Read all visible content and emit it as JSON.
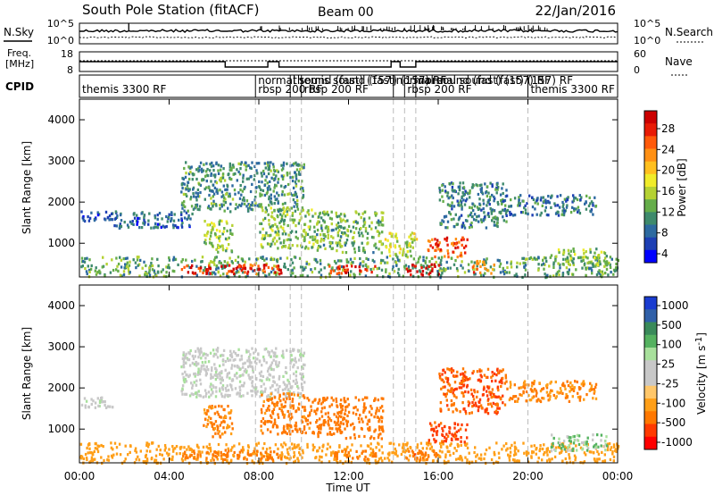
{
  "header": {
    "station": "South Pole Station (fitACF)",
    "beam": "Beam 00",
    "date": "22/Jan/2016"
  },
  "noise_panel": {
    "left_label": "N.Sky",
    "right_label": "N.Search",
    "left_ticks": [
      "10^5",
      "10^0"
    ],
    "right_ticks": [
      "10^5",
      "10^0"
    ]
  },
  "freq_panel": {
    "left_label_1": "Freq.",
    "left_label_2": "[MHz]",
    "right_label": "Nave",
    "left_ticks": [
      "18",
      "8"
    ],
    "right_ticks": [
      "60",
      "0"
    ]
  },
  "cpid": {
    "label": "CPID",
    "segments": [
      {
        "text": "themis 3300 RF",
        "start": 0.0
      },
      {
        "text": "normal sound (fast) (157)",
        "start": 7.85
      },
      {
        "text": "rbsp 200 RF",
        "start": 7.85
      },
      {
        "text": "themis sound (fast) (157) RF",
        "start": 9.4
      },
      {
        "text": "rbsp 200 RF",
        "start": 9.9
      },
      {
        "text": "normal sound (fast) (157) RF",
        "start": 14.0
      },
      {
        "text": "rbsp 200 RF",
        "start": 14.5
      },
      {
        "text": "normal sound (fast) (157) RF",
        "start": 15.0
      },
      {
        "text": "themis 3300 RF",
        "start": 20.0
      }
    ],
    "mode_boundaries": [
      7.85,
      9.4,
      9.9,
      14.0,
      14.5,
      15.0,
      20.0
    ]
  },
  "chart_data": {
    "type": "heatmap",
    "xlabel": "Time UT",
    "ylabel": "Slant Range [km]",
    "x_tick_labels": [
      "00:00",
      "04:00",
      "08:00",
      "12:00",
      "16:00",
      "20:00",
      "00:00"
    ],
    "x_ticks_hours": [
      0,
      4,
      8,
      12,
      16,
      20,
      24
    ],
    "xlim": [
      0,
      24
    ],
    "ylim": [
      180,
      4500
    ],
    "y_ticks": [
      1000,
      2000,
      3000,
      4000
    ],
    "panels": [
      {
        "name": "power",
        "colorbar_label": "Power [dB]",
        "colorbar_ticks": [
          "28",
          "24",
          "20",
          "16",
          "12",
          "8",
          "4"
        ],
        "colorbar_range": [
          0,
          30
        ],
        "colorbar_colors": [
          "#0000ff",
          "#1d3fb4",
          "#2d6aa0",
          "#3e8a6c",
          "#65ad4a",
          "#b5d233",
          "#f0ec2a",
          "#ffc01f",
          "#ff9014",
          "#ff5a0a",
          "#e81b05",
          "#cc0000"
        ],
        "echo_regions": [
          {
            "t0": 0.0,
            "t1": 24.0,
            "r0": 200,
            "r1": 700,
            "v": 10
          },
          {
            "t0": 4.5,
            "t1": 9.0,
            "r0": 280,
            "r1": 520,
            "v": 26
          },
          {
            "t0": 11.0,
            "t1": 13.2,
            "r0": 280,
            "r1": 500,
            "v": 27
          },
          {
            "t0": 14.5,
            "t1": 16.0,
            "r0": 260,
            "r1": 520,
            "v": 29
          },
          {
            "t0": 15.5,
            "t1": 17.3,
            "r0": 700,
            "r1": 1200,
            "v": 24
          },
          {
            "t0": 17.5,
            "t1": 18.5,
            "r0": 300,
            "r1": 600,
            "v": 22
          },
          {
            "t0": 0.0,
            "t1": 1.5,
            "r0": 1550,
            "r1": 1800,
            "v": 5
          },
          {
            "t0": 1.5,
            "t1": 5.0,
            "r0": 1400,
            "r1": 1800,
            "v": 6
          },
          {
            "t0": 4.5,
            "t1": 10.0,
            "r0": 1800,
            "r1": 3000,
            "v": 9
          },
          {
            "t0": 5.5,
            "t1": 6.8,
            "r0": 800,
            "r1": 1600,
            "v": 13
          },
          {
            "t0": 8.0,
            "t1": 10.5,
            "r0": 900,
            "r1": 1900,
            "v": 12
          },
          {
            "t0": 10.5,
            "t1": 13.5,
            "r0": 800,
            "r1": 1800,
            "v": 11
          },
          {
            "t0": 13.5,
            "t1": 15.0,
            "r0": 700,
            "r1": 1300,
            "v": 15
          },
          {
            "t0": 16.0,
            "t1": 19.0,
            "r0": 1400,
            "r1": 2500,
            "v": 8
          },
          {
            "t0": 19.0,
            "t1": 23.0,
            "r0": 1700,
            "r1": 2200,
            "v": 7
          },
          {
            "t0": 21.0,
            "t1": 23.5,
            "r0": 500,
            "r1": 900,
            "v": 12
          }
        ]
      },
      {
        "name": "velocity",
        "colorbar_label": "Velocity [m s^-1]",
        "colorbar_ticks": [
          "1000",
          "500",
          "100",
          "25",
          "-25",
          "-100",
          "-500",
          "-1000"
        ],
        "colorbar_range": [
          -1000,
          1000
        ],
        "colorbar_colors": [
          "#ff0000",
          "#ff3a00",
          "#ff7800",
          "#ff9f18",
          "#ffc76a",
          "#c8c8c8",
          "#c8c8c8",
          "#a8e09c",
          "#55b260",
          "#3a8a5a",
          "#3060a8",
          "#1a3cd0"
        ],
        "echo_regions": [
          {
            "t0": 0.0,
            "t1": 24.0,
            "r0": 200,
            "r1": 700,
            "v": -150
          },
          {
            "t0": 4.5,
            "t1": 9.0,
            "r0": 280,
            "r1": 520,
            "v": -300
          },
          {
            "t0": 11.0,
            "t1": 13.2,
            "r0": 280,
            "r1": 500,
            "v": -350
          },
          {
            "t0": 14.5,
            "t1": 16.0,
            "r0": 260,
            "r1": 520,
            "v": -400
          },
          {
            "t0": 15.5,
            "t1": 17.3,
            "r0": 700,
            "r1": 1200,
            "v": -600
          },
          {
            "t0": 0.0,
            "t1": 1.5,
            "r0": 1550,
            "r1": 1800,
            "v": 0
          },
          {
            "t0": 4.5,
            "t1": 10.0,
            "r0": 1800,
            "r1": 3000,
            "v": 0
          },
          {
            "t0": 5.5,
            "t1": 6.8,
            "r0": 800,
            "r1": 1600,
            "v": -200
          },
          {
            "t0": 8.0,
            "t1": 10.5,
            "r0": 900,
            "r1": 1900,
            "v": -250
          },
          {
            "t0": 10.5,
            "t1": 13.5,
            "r0": 800,
            "r1": 1800,
            "v": -300
          },
          {
            "t0": 16.0,
            "t1": 19.0,
            "r0": 1400,
            "r1": 2500,
            "v": -500
          },
          {
            "t0": 19.0,
            "t1": 23.0,
            "r0": 1700,
            "r1": 2200,
            "v": -200
          },
          {
            "t0": 21.0,
            "t1": 23.5,
            "r0": 500,
            "r1": 900,
            "v": 50
          }
        ]
      }
    ]
  }
}
